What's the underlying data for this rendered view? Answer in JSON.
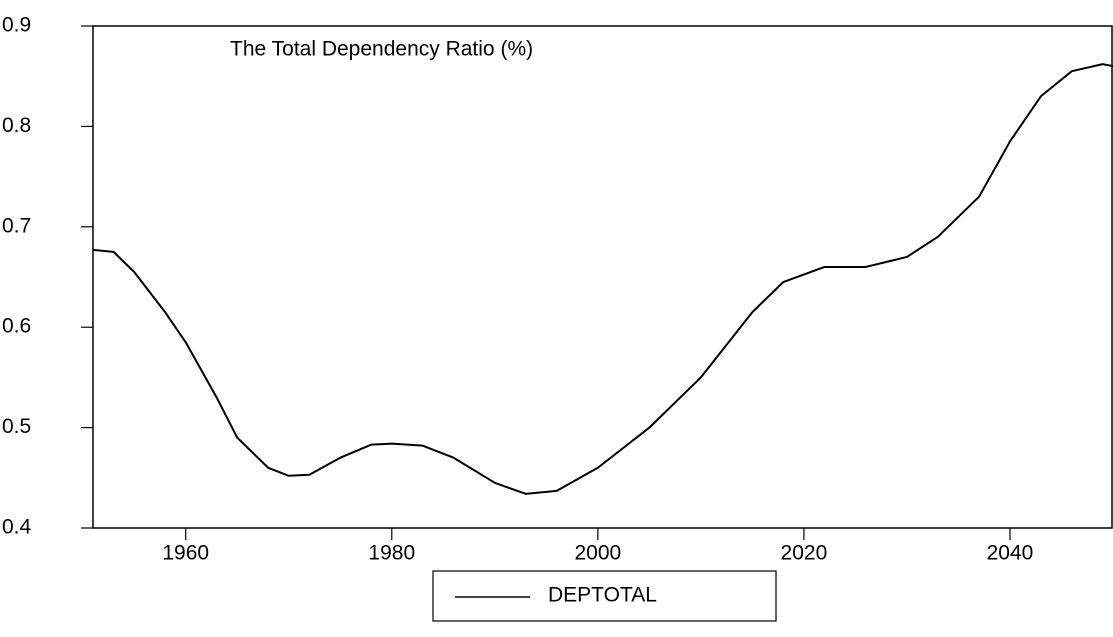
{
  "chart_data": {
    "type": "line",
    "title": "The Total Dependency Ratio (%)",
    "x": [
      1951,
      1953,
      1955,
      1958,
      1960,
      1963,
      1965,
      1968,
      1970,
      1972,
      1975,
      1978,
      1980,
      1983,
      1986,
      1990,
      1993,
      1996,
      2000,
      2005,
      2010,
      2015,
      2018,
      2022,
      2026,
      2030,
      2033,
      2037,
      2040,
      2043,
      2046,
      2049,
      2050
    ],
    "series": [
      {
        "name": "DEPTOTAL",
        "color": "#000000",
        "values": [
          0.677,
          0.675,
          0.655,
          0.615,
          0.585,
          0.53,
          0.49,
          0.46,
          0.452,
          0.453,
          0.47,
          0.483,
          0.484,
          0.482,
          0.47,
          0.445,
          0.434,
          0.437,
          0.46,
          0.5,
          0.55,
          0.615,
          0.645,
          0.66,
          0.66,
          0.67,
          0.69,
          0.73,
          0.785,
          0.83,
          0.855,
          0.862,
          0.86
        ]
      }
    ],
    "xlim": [
      1951,
      2050
    ],
    "xticks": [
      1960,
      1980,
      2000,
      2020,
      2040
    ],
    "ylim": [
      0.4,
      0.9
    ],
    "yticks": [
      0.4,
      0.5,
      0.6,
      0.7,
      0.8,
      0.9
    ]
  }
}
